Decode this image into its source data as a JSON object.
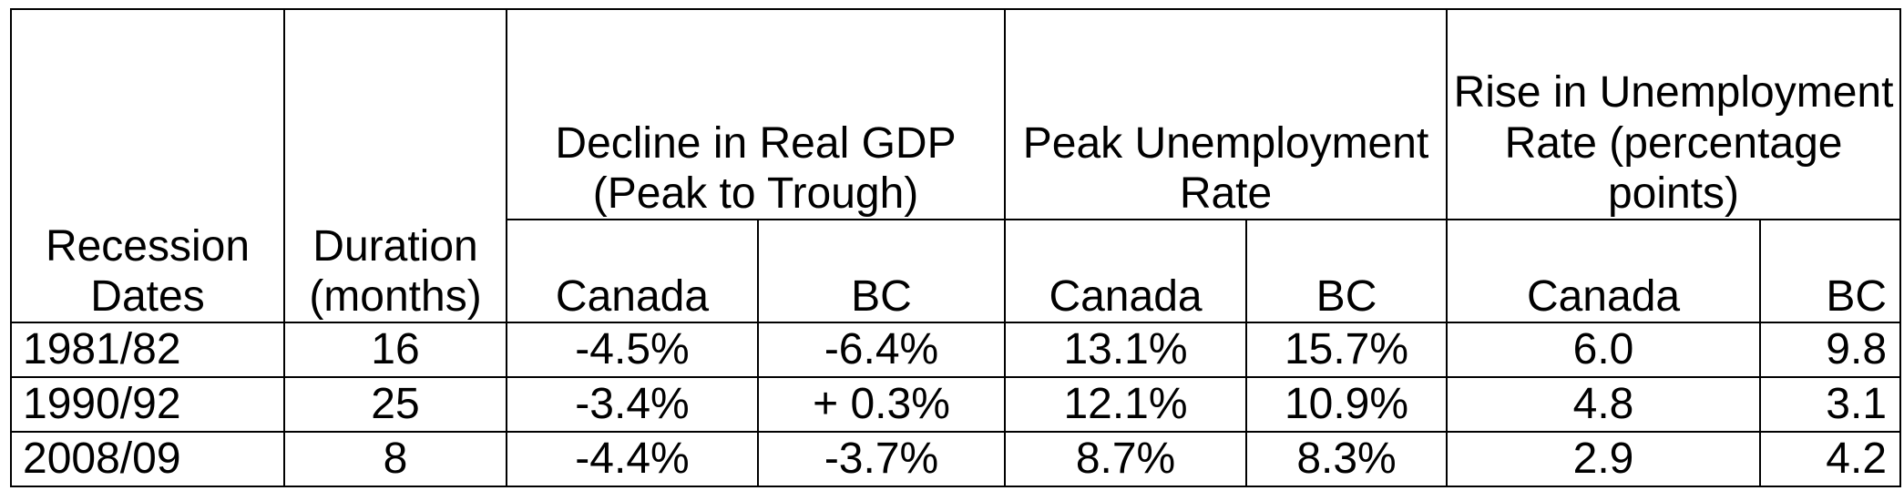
{
  "table": {
    "headers": {
      "recession_dates": "Recession Dates",
      "duration": "Duration (months)",
      "gdp_decline": "Decline in Real GDP (Peak to Trough)",
      "peak_unemployment": "Peak Unemployment Rate",
      "unemployment_rise": "Rise in Unemployment Rate (percentage points)",
      "canada": "Canada",
      "bc": "BC"
    },
    "rows": [
      {
        "dates": "1981/82",
        "duration": "16",
        "gdp_canada": "-4.5%",
        "gdp_bc": "-6.4%",
        "peak_canada": "13.1%",
        "peak_bc": "15.7%",
        "rise_canada": "6.0",
        "rise_bc": "9.8"
      },
      {
        "dates": "1990/92",
        "duration": "25",
        "gdp_canada": "-3.4%",
        "gdp_bc": "+ 0.3%",
        "peak_canada": "12.1%",
        "peak_bc": "10.9%",
        "rise_canada": "4.8",
        "rise_bc": "3.1"
      },
      {
        "dates": "2008/09",
        "duration": "8",
        "gdp_canada": "-4.4%",
        "gdp_bc": "-3.7%",
        "peak_canada": "8.7%",
        "peak_bc": "8.3%",
        "rise_canada": "2.9",
        "rise_bc": "4.2"
      }
    ]
  }
}
